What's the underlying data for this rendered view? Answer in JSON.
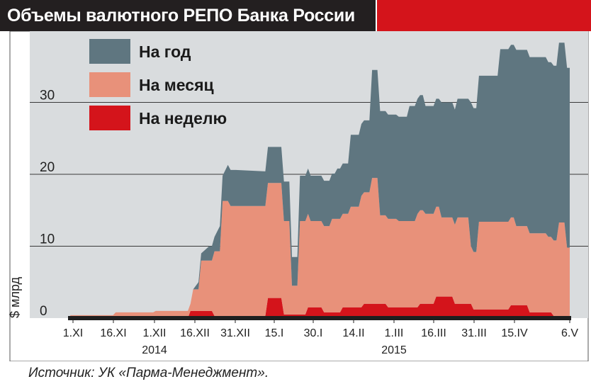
{
  "title": "Объемы валютного РЕПО Банка России",
  "source": "Источник: УК «Парма-Менеджмент».",
  "colors": {
    "title_bg": "#231f20",
    "title_accent": "#d4141b",
    "plot_bg": "#d9dcde",
    "year": "#5f7680",
    "month": "#e8917a",
    "week": "#d4141b",
    "baseline": "#1f1f1f"
  },
  "chart_data": {
    "type": "area",
    "stacked": true,
    "ylabel": "$ млрд",
    "ylim": [
      0,
      40
    ],
    "yticks": [
      0,
      10,
      20,
      30
    ],
    "grid": true,
    "legend_position": "top-left",
    "x_tick_labels": [
      "1.XI",
      "16.XI",
      "1.XII",
      "16.XII",
      "31.XII",
      "15.I",
      "30.I",
      "14.II",
      "1.III",
      "16.III",
      "31.III",
      "15.IV",
      "6.V"
    ],
    "year_labels": [
      {
        "label": "2014",
        "under_tick": "1.XII"
      },
      {
        "label": "2015",
        "under_tick": "1.III"
      }
    ],
    "series": [
      {
        "name": "На неделю",
        "color": "#d4141b",
        "points": [
          [
            "2014-10-31",
            0
          ],
          [
            "2014-12-14",
            0
          ],
          [
            "2014-12-15",
            1
          ],
          [
            "2014-12-23",
            1
          ],
          [
            "2014-12-24",
            0.3
          ],
          [
            "2015-01-12",
            0.3
          ],
          [
            "2015-01-13",
            2.8
          ],
          [
            "2015-01-18",
            2.8
          ],
          [
            "2015-01-19",
            0.5
          ],
          [
            "2015-01-27",
            0.5
          ],
          [
            "2015-01-28",
            1.5
          ],
          [
            "2015-02-02",
            1.5
          ],
          [
            "2015-02-03",
            0.8
          ],
          [
            "2015-02-09",
            0.8
          ],
          [
            "2015-02-10",
            1.5
          ],
          [
            "2015-02-17",
            1.5
          ],
          [
            "2015-02-18",
            2
          ],
          [
            "2015-02-26",
            2
          ],
          [
            "2015-02-27",
            1.5
          ],
          [
            "2015-03-10",
            1.5
          ],
          [
            "2015-03-11",
            2
          ],
          [
            "2015-03-16",
            2
          ],
          [
            "2015-03-17",
            3
          ],
          [
            "2015-03-23",
            3
          ],
          [
            "2015-03-24",
            2
          ],
          [
            "2015-03-30",
            2
          ],
          [
            "2015-03-31",
            1.2
          ],
          [
            "2015-04-13",
            1.2
          ],
          [
            "2015-04-14",
            1.8
          ],
          [
            "2015-04-20",
            1.8
          ],
          [
            "2015-04-21",
            0.8
          ],
          [
            "2015-04-29",
            0.8
          ],
          [
            "2015-04-30",
            0.3
          ],
          [
            "2015-05-06",
            0.3
          ]
        ]
      },
      {
        "name": "На месяц",
        "color": "#e8917a",
        "points": [
          [
            "2014-10-31",
            0.4
          ],
          [
            "2014-11-16",
            0.4
          ],
          [
            "2014-11-17",
            0.8
          ],
          [
            "2014-12-01",
            0.8
          ],
          [
            "2014-12-02",
            1
          ],
          [
            "2014-12-15",
            1
          ],
          [
            "2014-12-16",
            3
          ],
          [
            "2014-12-18",
            3
          ],
          [
            "2014-12-19",
            7
          ],
          [
            "2014-12-23",
            7
          ],
          [
            "2014-12-24",
            9
          ],
          [
            "2014-12-26",
            9
          ],
          [
            "2014-12-27",
            16
          ],
          [
            "2014-12-29",
            16
          ],
          [
            "2014-12-30",
            15.3
          ],
          [
            "2015-01-12",
            15.3
          ],
          [
            "2015-01-13",
            16
          ],
          [
            "2015-01-16",
            16
          ],
          [
            "2015-01-19",
            13
          ],
          [
            "2015-01-21",
            13
          ],
          [
            "2015-01-22",
            4
          ],
          [
            "2015-01-24",
            4
          ],
          [
            "2015-01-25",
            13
          ],
          [
            "2015-01-28",
            13
          ],
          [
            "2015-01-29",
            12
          ],
          [
            "2015-02-05",
            12
          ],
          [
            "2015-02-06",
            13
          ],
          [
            "2015-02-12",
            13
          ],
          [
            "2015-02-13",
            14
          ],
          [
            "2015-02-16",
            14
          ],
          [
            "2015-02-17",
            15.5
          ],
          [
            "2015-02-20",
            15.5
          ],
          [
            "2015-02-21",
            17.5
          ],
          [
            "2015-02-23",
            17.5
          ],
          [
            "2015-02-24",
            12.3
          ],
          [
            "2015-03-02",
            12.3
          ],
          [
            "2015-03-03",
            12
          ],
          [
            "2015-03-09",
            12
          ],
          [
            "2015-03-10",
            13
          ],
          [
            "2015-03-12",
            13
          ],
          [
            "2015-03-13",
            12.5
          ],
          [
            "2015-03-18",
            12.5
          ],
          [
            "2015-03-19",
            11
          ],
          [
            "2015-03-24",
            11
          ],
          [
            "2015-03-25",
            12
          ],
          [
            "2015-03-29",
            12
          ],
          [
            "2015-03-30",
            8
          ],
          [
            "2015-04-01",
            8
          ],
          [
            "2015-04-02",
            12.2
          ],
          [
            "2015-04-15",
            12.2
          ],
          [
            "2015-04-16",
            11
          ],
          [
            "2015-04-27",
            11
          ],
          [
            "2015-04-28",
            10.5
          ],
          [
            "2015-05-01",
            10.5
          ],
          [
            "2015-05-02",
            13
          ],
          [
            "2015-05-04",
            13
          ],
          [
            "2015-05-05",
            9.5
          ],
          [
            "2015-05-06",
            9.5
          ]
        ]
      },
      {
        "name": "На год",
        "color": "#5f7680",
        "points": [
          [
            "2014-10-31",
            0
          ],
          [
            "2014-12-16",
            0
          ],
          [
            "2014-12-18",
            1
          ],
          [
            "2014-12-22",
            2
          ],
          [
            "2014-12-26",
            3.5
          ],
          [
            "2014-12-29",
            5
          ],
          [
            "2015-01-01",
            5
          ],
          [
            "2015-01-12",
            4.8
          ],
          [
            "2015-01-13",
            5
          ],
          [
            "2015-01-16",
            5
          ],
          [
            "2015-01-19",
            5.5
          ],
          [
            "2015-01-21",
            5.5
          ],
          [
            "2015-01-22",
            4
          ],
          [
            "2015-01-24",
            4
          ],
          [
            "2015-01-25",
            6.3
          ],
          [
            "2015-02-07",
            6.3
          ],
          [
            "2015-02-08",
            7
          ],
          [
            "2015-02-12",
            7
          ],
          [
            "2015-02-13",
            10
          ],
          [
            "2015-02-20",
            10
          ],
          [
            "2015-02-21",
            15
          ],
          [
            "2015-02-23",
            15
          ],
          [
            "2015-02-24",
            14.5
          ],
          [
            "2015-03-06",
            14.5
          ],
          [
            "2015-03-07",
            16
          ],
          [
            "2015-03-12",
            16
          ],
          [
            "2015-03-13",
            15
          ],
          [
            "2015-03-18",
            15
          ],
          [
            "2015-03-19",
            16
          ],
          [
            "2015-03-24",
            16
          ],
          [
            "2015-03-25",
            16.5
          ],
          [
            "2015-03-29",
            16.5
          ],
          [
            "2015-03-30",
            20
          ],
          [
            "2015-04-01",
            20
          ],
          [
            "2015-04-02",
            20.3
          ],
          [
            "2015-04-09",
            20.3
          ],
          [
            "2015-04-10",
            24
          ],
          [
            "2015-04-15",
            24
          ],
          [
            "2015-04-16",
            24.5
          ],
          [
            "2015-04-27",
            24.5
          ],
          [
            "2015-04-28",
            24.3
          ],
          [
            "2015-05-01",
            24.3
          ],
          [
            "2015-05-02",
            25
          ],
          [
            "2015-05-04",
            25
          ],
          [
            "2015-05-05",
            25
          ],
          [
            "2015-05-06",
            25
          ]
        ]
      }
    ]
  }
}
